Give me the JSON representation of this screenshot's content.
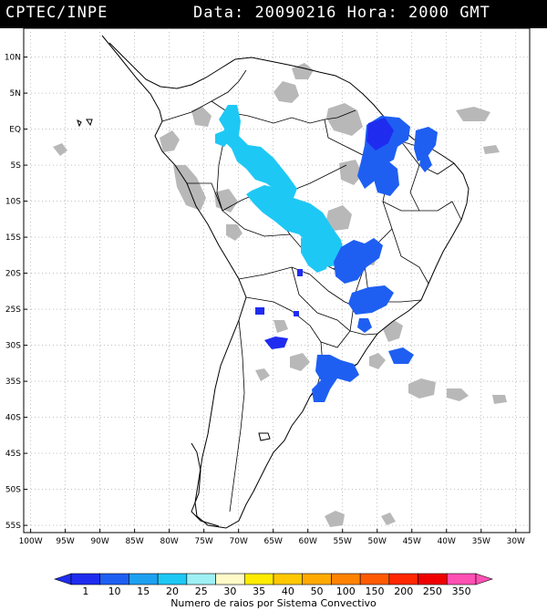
{
  "header": {
    "source": "CPTEC/INPE",
    "date_label": "Data:",
    "date_value": "20090216",
    "time_label": "Hora:",
    "time_value": "2000 GMT"
  },
  "map": {
    "lat_labels": [
      "10N",
      "5N",
      "EQ",
      "5S",
      "10S",
      "15S",
      "20S",
      "25S",
      "30S",
      "35S",
      "40S",
      "45S",
      "50S",
      "55S"
    ],
    "lat_values": [
      10,
      5,
      0,
      -5,
      -10,
      -15,
      -20,
      -25,
      -30,
      -35,
      -40,
      -45,
      -50,
      -55
    ],
    "lon_labels": [
      "100W",
      "95W",
      "90W",
      "85W",
      "80W",
      "75W",
      "70W",
      "65W",
      "60W",
      "55W",
      "50W",
      "45W",
      "40W",
      "35W",
      "30W"
    ],
    "lon_values": [
      -100,
      -95,
      -90,
      -85,
      -80,
      -75,
      -70,
      -65,
      -60,
      -55,
      -50,
      -45,
      -40,
      -35,
      -30
    ],
    "colors": {
      "land_outline": "#000000",
      "cloud_gray": "#b8b8b8",
      "grid": "#9a9a9a"
    }
  },
  "legend": {
    "ticks": [
      "1",
      "10",
      "15",
      "20",
      "25",
      "30",
      "35",
      "40",
      "50",
      "100",
      "150",
      "200",
      "250",
      "350"
    ],
    "colors": [
      "#1f2cf0",
      "#1e5ff2",
      "#1ea0f0",
      "#1ec8f5",
      "#9ff0f5",
      "#fffac8",
      "#ffeb00",
      "#ffc800",
      "#ffaa00",
      "#ff8200",
      "#ff5a00",
      "#ff2800",
      "#f00000",
      "#ff50b4"
    ],
    "caption": "Numero de raios por Sistema Convectivo"
  }
}
